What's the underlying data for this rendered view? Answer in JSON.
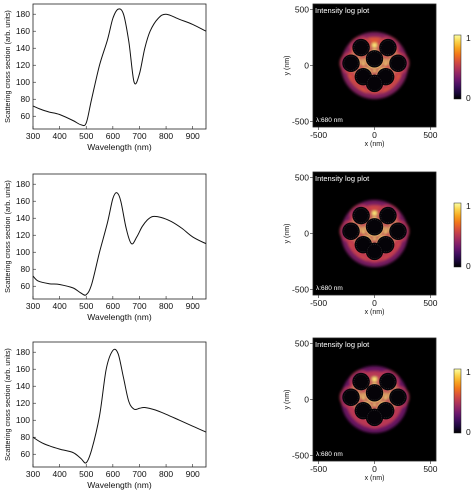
{
  "chart_data": [
    {
      "type": "line",
      "xlabel": "Wavelength (nm)",
      "ylabel": "Scattering cross section (arb. units)",
      "xlim": [
        300,
        950
      ],
      "ylim": [
        45,
        192
      ],
      "xticks": [
        300,
        400,
        500,
        600,
        700,
        800,
        900
      ],
      "yticks": [
        60,
        80,
        100,
        120,
        140,
        160,
        180
      ],
      "series": [
        {
          "x": [
            300,
            330,
            360,
            400,
            450,
            480,
            500,
            520,
            550,
            580,
            600,
            620,
            640,
            660,
            680,
            700,
            720,
            740,
            770,
            800,
            850,
            900,
            950
          ],
          "y": [
            72,
            68,
            65,
            62,
            55,
            50,
            52,
            80,
            120,
            150,
            175,
            186,
            180,
            148,
            100,
            110,
            140,
            160,
            175,
            180,
            174,
            168,
            160
          ]
        }
      ]
    },
    {
      "type": "line",
      "xlabel": "Wavelength (nm)",
      "ylabel": "Scattering cross section (arb. units)",
      "xlim": [
        300,
        950
      ],
      "ylim": [
        45,
        192
      ],
      "xticks": [
        300,
        400,
        500,
        600,
        700,
        800,
        900
      ],
      "yticks": [
        60,
        80,
        100,
        120,
        140,
        160,
        180
      ],
      "series": [
        {
          "x": [
            300,
            320,
            360,
            400,
            450,
            480,
            500,
            520,
            550,
            580,
            600,
            615,
            630,
            650,
            670,
            690,
            710,
            730,
            750,
            780,
            820,
            860,
            900,
            950
          ],
          "y": [
            72,
            66,
            63,
            62,
            58,
            52,
            50,
            62,
            100,
            135,
            163,
            170,
            160,
            128,
            110,
            118,
            130,
            138,
            142,
            141,
            136,
            128,
            118,
            110
          ]
        }
      ]
    },
    {
      "type": "line",
      "xlabel": "Wavelength (nm)",
      "ylabel": "Scattering cross section (arb. units)",
      "xlim": [
        300,
        950
      ],
      "ylim": [
        45,
        192
      ],
      "xticks": [
        300,
        400,
        500,
        600,
        700,
        800,
        900
      ],
      "yticks": [
        60,
        80,
        100,
        120,
        140,
        160,
        180
      ],
      "ytick_labels": [
        60,
        80,
        100,
        120,
        140,
        160,
        180
      ],
      "series": [
        {
          "x": [
            300,
            330,
            360,
            400,
            450,
            480,
            500,
            520,
            550,
            575,
            600,
            620,
            640,
            660,
            680,
            700,
            720,
            760,
            800,
            850,
            900,
            950
          ],
          "y": [
            80,
            74,
            70,
            66,
            62,
            55,
            50,
            65,
            105,
            160,
            182,
            178,
            150,
            122,
            113,
            114,
            115,
            112,
            107,
            100,
            93,
            86
          ]
        }
      ]
    },
    {
      "type": "heatmap",
      "title": "Intensity log plot",
      "annotation": "λ:680 nm",
      "xlabel": "x (nm)",
      "ylabel": "y (nm)",
      "xlim": [
        -550,
        550
      ],
      "ylim": [
        -550,
        550
      ],
      "xticks": [
        -500,
        0,
        500
      ],
      "yticks": [
        500,
        0,
        -500
      ],
      "colorbar": {
        "min": 0,
        "max": 1,
        "ticks": [
          "1",
          "0"
        ],
        "colormap": "inferno"
      }
    },
    {
      "type": "heatmap",
      "title": "Intensity log plot",
      "annotation": "λ:680 nm",
      "xlabel": "x (nm)",
      "ylabel": "y (nm)",
      "xlim": [
        -550,
        550
      ],
      "ylim": [
        -550,
        550
      ],
      "xticks": [
        -500,
        0,
        500
      ],
      "yticks": [
        500,
        0,
        -500
      ],
      "colorbar": {
        "min": 0,
        "max": 1,
        "ticks": [
          "1",
          "0"
        ],
        "colormap": "inferno"
      }
    },
    {
      "type": "heatmap",
      "title": "Intensity log plot",
      "annotation": "λ:680 nm",
      "xlabel": "x (nm)",
      "ylabel": "y (nm)",
      "xlim": [
        -550,
        550
      ],
      "ylim": [
        -550,
        550
      ],
      "xticks": [
        -500,
        0,
        500
      ],
      "yticks": [
        500,
        0,
        -500
      ],
      "colorbar": {
        "min": 0,
        "max": 1,
        "ticks": [
          "1",
          "0"
        ],
        "colormap": "inferno"
      }
    }
  ]
}
